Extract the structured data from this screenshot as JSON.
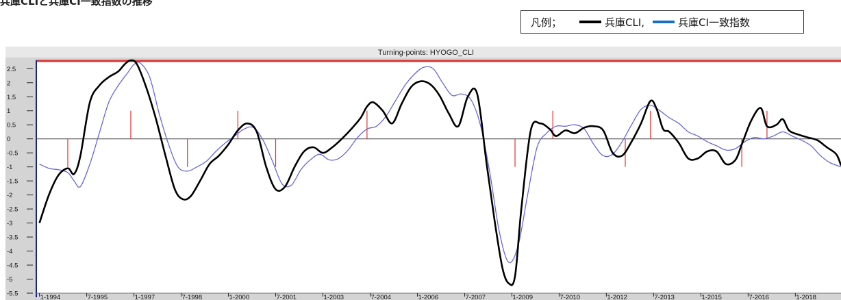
{
  "page": {
    "title": "兵庫CLIと兵庫CI一致指数の推移"
  },
  "legend": {
    "label": "凡例；",
    "entries": [
      {
        "name": "兵庫CLI,",
        "color": "#000000"
      },
      {
        "name": "兵庫CI一致指数",
        "color": "#1a6fc4"
      }
    ]
  },
  "colors": {
    "cli": "#000000",
    "ci": "#6666dd",
    "turning_points": "#e03030",
    "zero_line": "#444444",
    "left_axis": "#1a237e",
    "top_line": "#e03030",
    "plot_background": "#ffffff",
    "chart_frame": "#d4d4d4",
    "title_bar": "#e8e8e8"
  },
  "chart_data": {
    "type": "line",
    "title": "Turning-points: HYOGO_CLI",
    "ylim": [
      -5.5,
      2.8
    ],
    "xlim": [
      1993.9,
      2019.45
    ],
    "yticks": [
      {
        "v": 2.5,
        "t": "2.5"
      },
      {
        "v": 2,
        "t": "2"
      },
      {
        "v": 1.5,
        "t": "1.5"
      },
      {
        "v": 1,
        "t": "1"
      },
      {
        "v": 0.5,
        "t": "0.5"
      },
      {
        "v": 0,
        "t": "0"
      },
      {
        "v": -0.5,
        "t": "-0.5"
      },
      {
        "v": -1,
        "t": "-1"
      },
      {
        "v": -1.5,
        "t": "-1.5"
      },
      {
        "v": -2,
        "t": "-2"
      },
      {
        "v": -2.5,
        "t": "-2.5"
      },
      {
        "v": -3,
        "t": "-3"
      },
      {
        "v": -3.5,
        "t": "-3.5"
      },
      {
        "v": -4,
        "t": "-4"
      },
      {
        "v": -4.5,
        "t": "-4.5"
      },
      {
        "v": -5,
        "t": "-5"
      },
      {
        "v": -5.5,
        "t": "-5.5"
      }
    ],
    "xticks": [
      {
        "v": 1994.0,
        "t": "1-1994"
      },
      {
        "v": 1995.5,
        "t": "7-1995"
      },
      {
        "v": 1997.0,
        "t": "1-1997"
      },
      {
        "v": 1998.5,
        "t": "7-1998"
      },
      {
        "v": 2000.0,
        "t": "1-2000"
      },
      {
        "v": 2001.5,
        "t": "7-2001"
      },
      {
        "v": 2003.0,
        "t": "1-2003"
      },
      {
        "v": 2004.5,
        "t": "7-2004"
      },
      {
        "v": 2006.0,
        "t": "1-2006"
      },
      {
        "v": 2007.5,
        "t": "7-2007"
      },
      {
        "v": 2009.0,
        "t": "1-2009"
      },
      {
        "v": 2010.5,
        "t": "7-2010"
      },
      {
        "v": 2012.0,
        "t": "1-2012"
      },
      {
        "v": 2013.5,
        "t": "7-2013"
      },
      {
        "v": 2015.0,
        "t": "1-2015"
      },
      {
        "v": 2016.5,
        "t": "7-2016"
      },
      {
        "v": 2018.0,
        "t": "1-2018"
      }
    ],
    "turning_points": [
      {
        "x": 1994.9,
        "y": -1.0
      },
      {
        "x": 1996.9,
        "y": 1.0
      },
      {
        "x": 1998.7,
        "y": -1.0
      },
      {
        "x": 2000.3,
        "y": 1.0
      },
      {
        "x": 2001.5,
        "y": -1.0
      },
      {
        "x": 2004.4,
        "y": 1.0
      },
      {
        "x": 2009.1,
        "y": -1.0
      },
      {
        "x": 2010.3,
        "y": 1.0
      },
      {
        "x": 2012.6,
        "y": -1.0
      },
      {
        "x": 2013.4,
        "y": 1.0
      },
      {
        "x": 2016.3,
        "y": -1.0
      },
      {
        "x": 2017.1,
        "y": 1.0
      }
    ],
    "series": [
      {
        "key": "cli",
        "x": [
          1994.0,
          1994.3,
          1994.6,
          1994.9,
          1995.1,
          1995.3,
          1995.6,
          1995.9,
          1996.2,
          1996.5,
          1996.7,
          1996.9,
          1997.1,
          1997.4,
          1997.7,
          1998.0,
          1998.3,
          1998.55,
          1998.8,
          1999.1,
          1999.4,
          1999.7,
          2000.0,
          2000.3,
          2000.6,
          2000.9,
          2001.2,
          2001.5,
          2001.8,
          2002.1,
          2002.4,
          2002.7,
          2003.0,
          2003.3,
          2003.6,
          2003.9,
          2004.2,
          2004.4,
          2004.6,
          2004.9,
          2005.2,
          2005.5,
          2005.8,
          2006.1,
          2006.4,
          2006.7,
          2007.0,
          2007.3,
          2007.6,
          2007.9,
          2008.2,
          2008.45,
          2008.7,
          2008.9,
          2009.1,
          2009.3,
          2009.6,
          2009.9,
          2010.2,
          2010.4,
          2010.7,
          2011.0,
          2011.3,
          2011.6,
          2011.9,
          2012.2,
          2012.5,
          2012.8,
          2013.1,
          2013.4,
          2013.6,
          2013.8,
          2014.0,
          2014.3,
          2014.6,
          2014.9,
          2015.2,
          2015.5,
          2015.8,
          2016.1,
          2016.3,
          2016.6,
          2016.9,
          2017.1,
          2017.4,
          2017.6,
          2017.8,
          2018.1,
          2018.4,
          2018.7,
          2019.0,
          2019.3,
          2019.45
        ],
        "y": [
          -3.0,
          -2.0,
          -1.3,
          -1.05,
          -1.25,
          -0.6,
          1.3,
          1.9,
          2.2,
          2.4,
          2.65,
          2.8,
          2.65,
          1.8,
          0.7,
          -0.6,
          -1.8,
          -2.15,
          -2.05,
          -1.5,
          -0.9,
          -0.6,
          -0.2,
          0.3,
          0.55,
          0.25,
          -1.0,
          -1.8,
          -1.7,
          -1.0,
          -0.45,
          -0.3,
          -0.5,
          -0.3,
          0.0,
          0.35,
          0.75,
          1.15,
          1.3,
          1.0,
          0.55,
          1.25,
          1.85,
          2.05,
          1.95,
          1.55,
          0.9,
          0.45,
          1.5,
          1.6,
          -0.9,
          -2.9,
          -4.6,
          -5.15,
          -4.9,
          -2.5,
          0.3,
          0.55,
          0.35,
          0.1,
          0.3,
          0.2,
          0.4,
          0.45,
          0.3,
          -0.5,
          -0.6,
          -0.1,
          0.55,
          1.35,
          1.05,
          0.35,
          0.25,
          -0.15,
          -0.7,
          -0.7,
          -0.45,
          -0.45,
          -0.9,
          -0.75,
          -0.2,
          0.65,
          1.1,
          0.45,
          0.5,
          0.7,
          0.3,
          0.15,
          0.05,
          -0.05,
          -0.3,
          -0.55,
          -0.95
        ]
      },
      {
        "key": "ci",
        "x": [
          1994.0,
          1994.3,
          1994.6,
          1994.9,
          1995.1,
          1995.3,
          1995.6,
          1995.9,
          1996.2,
          1996.5,
          1996.8,
          1997.0,
          1997.2,
          1997.5,
          1997.8,
          1998.1,
          1998.4,
          1998.7,
          1999.0,
          1999.3,
          1999.6,
          1999.9,
          2000.2,
          2000.5,
          2000.8,
          2001.1,
          2001.4,
          2001.7,
          2002.0,
          2002.3,
          2002.6,
          2002.9,
          2003.2,
          2003.5,
          2003.8,
          2004.1,
          2004.4,
          2004.7,
          2005.0,
          2005.3,
          2005.6,
          2005.9,
          2006.2,
          2006.5,
          2006.8,
          2007.1,
          2007.4,
          2007.7,
          2008.0,
          2008.3,
          2008.6,
          2008.9,
          2009.2,
          2009.5,
          2009.8,
          2010.1,
          2010.4,
          2010.7,
          2011.0,
          2011.3,
          2011.6,
          2011.9,
          2012.2,
          2012.5,
          2012.8,
          2013.1,
          2013.4,
          2013.7,
          2014.0,
          2014.3,
          2014.6,
          2014.9,
          2015.2,
          2015.5,
          2015.8,
          2016.1,
          2016.4,
          2016.7,
          2017.0,
          2017.3,
          2017.6,
          2017.9,
          2018.2,
          2018.5,
          2018.8,
          2019.1,
          2019.45
        ],
        "y": [
          -0.9,
          -1.05,
          -1.1,
          -1.2,
          -1.5,
          -1.7,
          -0.9,
          0.2,
          1.3,
          1.9,
          2.35,
          2.65,
          2.7,
          2.2,
          0.9,
          -0.2,
          -1.0,
          -1.15,
          -1.0,
          -0.8,
          -0.45,
          -0.15,
          0.1,
          0.35,
          0.4,
          -0.05,
          -0.8,
          -1.6,
          -1.65,
          -1.1,
          -0.75,
          -0.55,
          -0.75,
          -0.7,
          -0.4,
          0.05,
          0.35,
          0.45,
          0.8,
          1.35,
          1.9,
          2.3,
          2.55,
          2.5,
          2.0,
          1.55,
          1.6,
          1.4,
          0.5,
          -1.2,
          -3.3,
          -4.4,
          -3.8,
          -2.0,
          -0.3,
          0.2,
          0.45,
          0.45,
          0.5,
          0.35,
          -0.2,
          -0.6,
          -0.55,
          -0.1,
          0.5,
          1.05,
          1.2,
          1.0,
          0.75,
          0.55,
          0.25,
          0.1,
          -0.1,
          -0.25,
          -0.4,
          -0.35,
          -0.1,
          0.05,
          0.0,
          0.1,
          0.25,
          0.1,
          -0.05,
          -0.25,
          -0.6,
          -0.85,
          -1.0
        ]
      }
    ]
  }
}
